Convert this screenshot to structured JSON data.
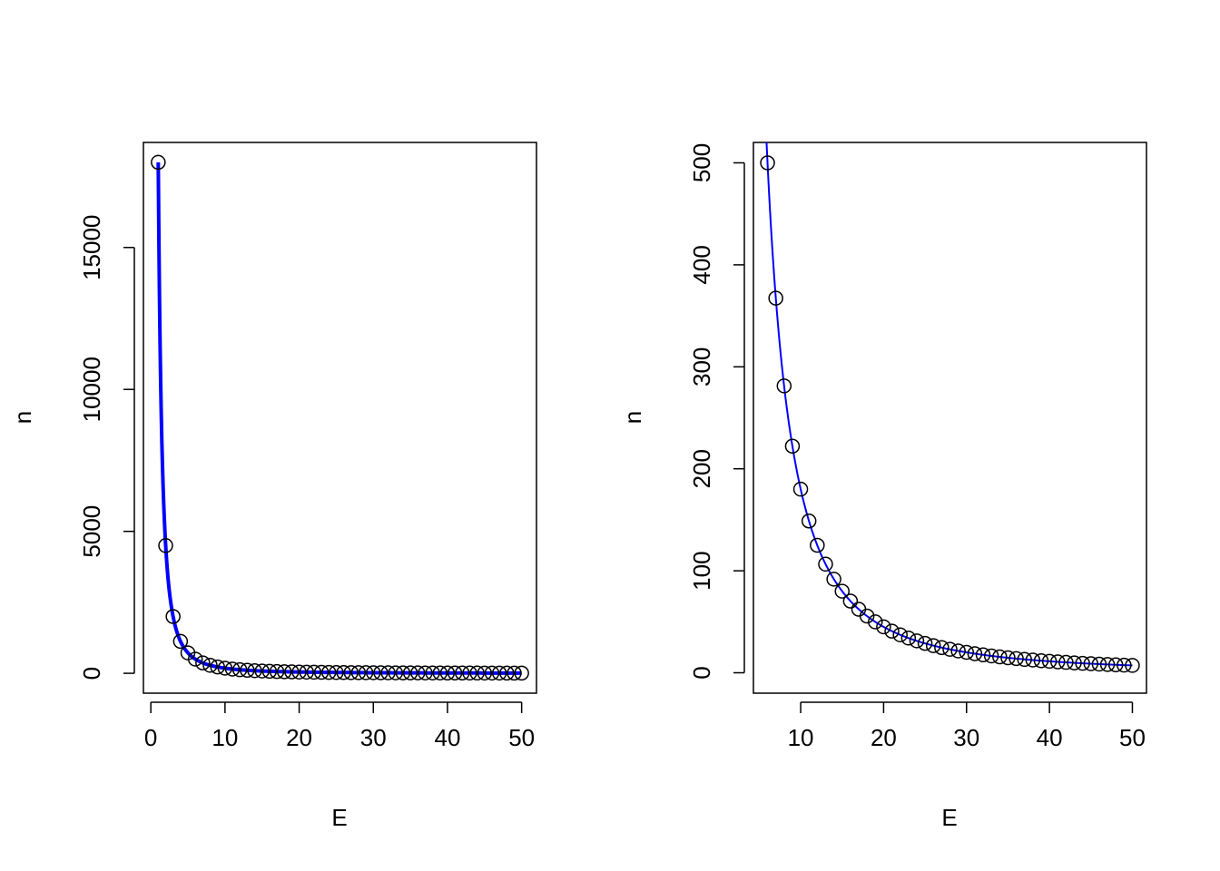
{
  "chart_data": [
    {
      "type": "scatter",
      "xlabel": "E",
      "ylabel": "n",
      "xlim": [
        -1,
        52
      ],
      "ylim": [
        -700,
        18700
      ],
      "xticks": [
        0,
        10,
        20,
        30,
        40,
        50
      ],
      "yticks": [
        0,
        5000,
        10000,
        15000
      ],
      "grid": false,
      "series": [
        {
          "kind": "points",
          "x": [
            1,
            2,
            3,
            4,
            5,
            6,
            7,
            8,
            9,
            10,
            11,
            12,
            13,
            14,
            15,
            16,
            17,
            18,
            19,
            20,
            21,
            22,
            23,
            24,
            25,
            26,
            27,
            28,
            29,
            30,
            31,
            32,
            33,
            34,
            35,
            36,
            37,
            38,
            39,
            40,
            41,
            42,
            43,
            44,
            45,
            46,
            47,
            48,
            49,
            50
          ],
          "y": [
            18000,
            4500,
            2000,
            1125,
            720,
            500,
            367.3,
            281.3,
            222.2,
            180,
            148.8,
            125,
            106.5,
            91.8,
            80,
            70.3,
            62.3,
            55.6,
            49.9,
            45,
            40.8,
            37.2,
            34,
            31.3,
            28.8,
            26.6,
            24.7,
            23,
            21.4,
            20,
            18.7,
            17.6,
            16.5,
            15.6,
            14.7,
            13.9,
            13.1,
            12.5,
            11.8,
            11.3,
            10.7,
            10.2,
            9.7,
            9.3,
            8.9,
            8.5,
            8.1,
            7.8,
            7.5,
            7.2
          ],
          "color": "#000000"
        },
        {
          "kind": "line",
          "function": "n = 18000 / E^2",
          "x_range": [
            1,
            50
          ],
          "color": "#0000ff"
        }
      ]
    },
    {
      "type": "scatter",
      "xlabel": "E",
      "ylabel": "n",
      "xlim": [
        4.3,
        51.7
      ],
      "ylim": [
        -20,
        520
      ],
      "xticks": [
        10,
        20,
        30,
        40,
        50
      ],
      "yticks": [
        0,
        100,
        200,
        300,
        400,
        500
      ],
      "grid": false,
      "series": [
        {
          "kind": "points",
          "x": [
            6,
            7,
            8,
            9,
            10,
            11,
            12,
            13,
            14,
            15,
            16,
            17,
            18,
            19,
            20,
            21,
            22,
            23,
            24,
            25,
            26,
            27,
            28,
            29,
            30,
            31,
            32,
            33,
            34,
            35,
            36,
            37,
            38,
            39,
            40,
            41,
            42,
            43,
            44,
            45,
            46,
            47,
            48,
            49,
            50
          ],
          "y": [
            500,
            367.3,
            281.3,
            222.2,
            180,
            148.8,
            125,
            106.5,
            91.8,
            80,
            70.3,
            62.3,
            55.6,
            49.9,
            45,
            40.8,
            37.2,
            34,
            31.3,
            28.8,
            26.6,
            24.7,
            23,
            21.4,
            20,
            18.7,
            17.6,
            16.5,
            15.6,
            14.7,
            13.9,
            13.1,
            12.5,
            11.8,
            11.3,
            10.7,
            10.2,
            9.7,
            9.3,
            8.9,
            8.5,
            8.1,
            7.8,
            7.5,
            7.2
          ],
          "color": "#000000"
        },
        {
          "kind": "line",
          "function": "n = 18000 / E^2",
          "x_range": [
            4.3,
            50
          ],
          "color": "#0000ff"
        }
      ]
    }
  ]
}
